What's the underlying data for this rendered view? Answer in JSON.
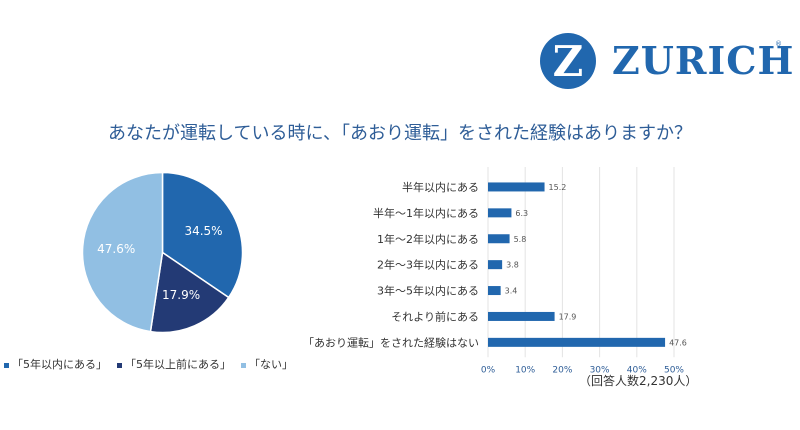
{
  "brand": {
    "logo_symbol": "Z",
    "name": "ZURICH",
    "registered_mark": "®",
    "color": "#2167ae"
  },
  "question": "あなたが運転している時に、「あおり運転」をされた経験はありますか？",
  "respondents_note": "（回答人数2,230人）",
  "chart_data": [
    {
      "type": "pie",
      "slices": [
        {
          "label": "「5年以内にある」",
          "value": 34.5,
          "value_label": "34.5%",
          "color": "#2167ae"
        },
        {
          "label": "「5年以上前にある」",
          "value": 17.9,
          "value_label": "17.9%",
          "color": "#233a75"
        },
        {
          "label": "「ない」",
          "value": 47.6,
          "value_label": "47.6%",
          "color": "#91bfe3"
        }
      ],
      "start_angle": "12 o'clock",
      "direction": "clockwise",
      "legend": "bottom"
    },
    {
      "type": "bar",
      "orientation": "horizontal",
      "categories": [
        "半年以内にある",
        "半年～1年以内にある",
        "1年～2年以内にある",
        "2年～3年以内にある",
        "3年～5年以内にある",
        "それより前にある",
        "「あおり運転」をされた経験はない"
      ],
      "values": [
        15.2,
        6.3,
        5.8,
        3.8,
        3.4,
        17.9,
        47.6
      ],
      "value_labels": [
        "15.2",
        "6.3",
        "5.8",
        "3.8",
        "3.4",
        "17.9",
        "47.6"
      ],
      "xlim": [
        0,
        50
      ],
      "xticks": [
        "0%",
        "10%",
        "20%",
        "30%",
        "40%",
        "50%"
      ],
      "grid": "vertical",
      "color": "#2167ae"
    }
  ]
}
